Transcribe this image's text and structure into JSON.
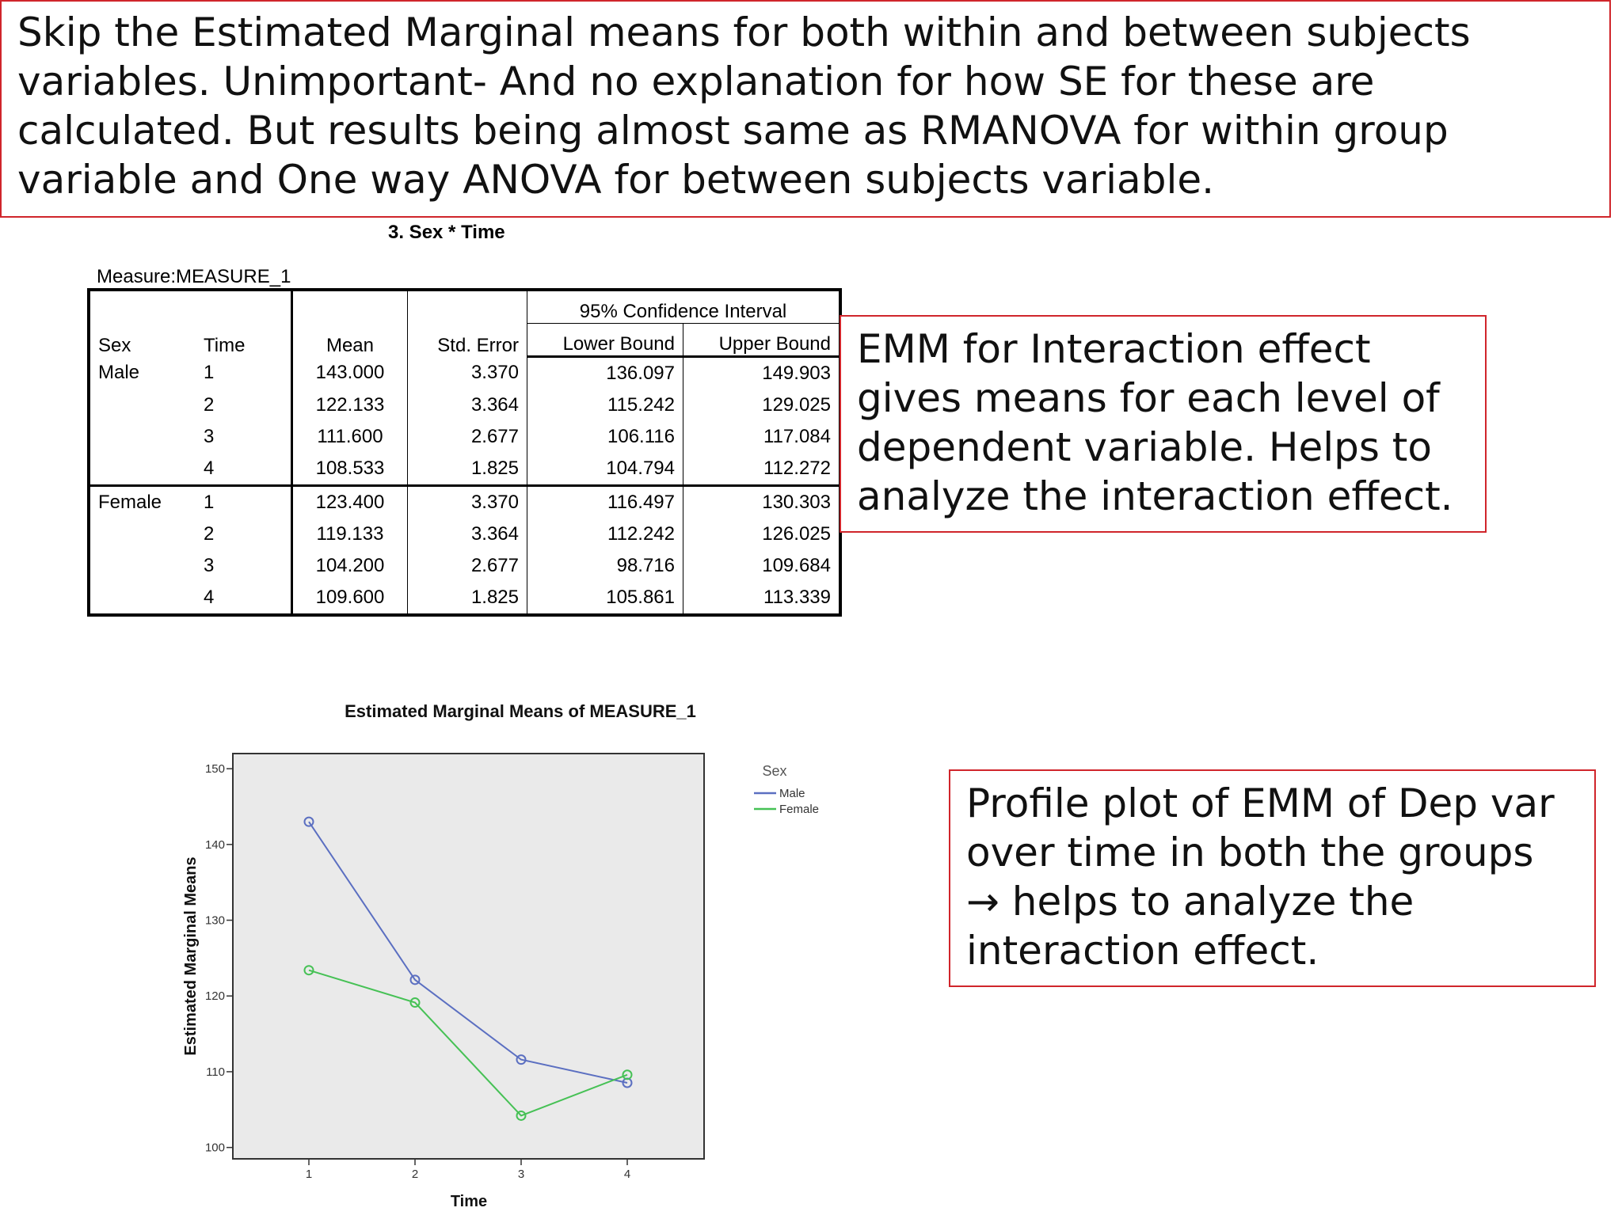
{
  "notes": {
    "top": "Skip the Estimated Marginal means for both within and between subjects variables. Unimportant- And no explanation for how SE for these are calculated. But results being almost same as RMANOVA for within group variable and One way ANOVA for between subjects variable.",
    "interaction": "EMM for Interaction effect gives means for each level of dependent variable. Helps to analyze the interaction effect.",
    "profile": "Profile plot of EMM of Dep var over time in both the groups → helps to analyze the interaction effect."
  },
  "table": {
    "title": "3. Sex * Time",
    "measure": "Measure:MEASURE_1",
    "ci_header": "95% Confidence Interval",
    "columns": {
      "sex": "Sex",
      "time": "Time",
      "mean": "Mean",
      "se": "Std. Error",
      "lower": "Lower Bound",
      "upper": "Upper Bound"
    },
    "rows": [
      {
        "sex": "Male",
        "time": "1",
        "mean": "143.000",
        "se": "3.370",
        "lower": "136.097",
        "upper": "149.903"
      },
      {
        "sex": "",
        "time": "2",
        "mean": "122.133",
        "se": "3.364",
        "lower": "115.242",
        "upper": "129.025"
      },
      {
        "sex": "",
        "time": "3",
        "mean": "111.600",
        "se": "2.677",
        "lower": "106.116",
        "upper": "117.084"
      },
      {
        "sex": "",
        "time": "4",
        "mean": "108.533",
        "se": "1.825",
        "lower": "104.794",
        "upper": "112.272"
      },
      {
        "sex": "Female",
        "time": "1",
        "mean": "123.400",
        "se": "3.370",
        "lower": "116.497",
        "upper": "130.303"
      },
      {
        "sex": "",
        "time": "2",
        "mean": "119.133",
        "se": "3.364",
        "lower": "112.242",
        "upper": "126.025"
      },
      {
        "sex": "",
        "time": "3",
        "mean": "104.200",
        "se": "2.677",
        "lower": "98.716",
        "upper": "109.684"
      },
      {
        "sex": "",
        "time": "4",
        "mean": "109.600",
        "se": "1.825",
        "lower": "105.861",
        "upper": "113.339"
      }
    ]
  },
  "chart_data": {
    "type": "line",
    "title": "Estimated Marginal Means of MEASURE_1",
    "xlabel": "Time",
    "ylabel": "Estimated Marginal Means",
    "categories": [
      "1",
      "2",
      "3",
      "4"
    ],
    "ylim": [
      98.5,
      152
    ],
    "yticks": [
      100,
      110,
      120,
      130,
      140,
      150
    ],
    "grid": false,
    "legend_title": "Sex",
    "legend_position": "right",
    "series": [
      {
        "name": "Male",
        "color": "#5b6fc1",
        "values": [
          143.0,
          122.133,
          111.6,
          108.533
        ]
      },
      {
        "name": "Female",
        "color": "#46c155",
        "values": [
          123.4,
          119.133,
          104.2,
          109.6
        ]
      }
    ],
    "plot_background": "#eaeaea"
  }
}
